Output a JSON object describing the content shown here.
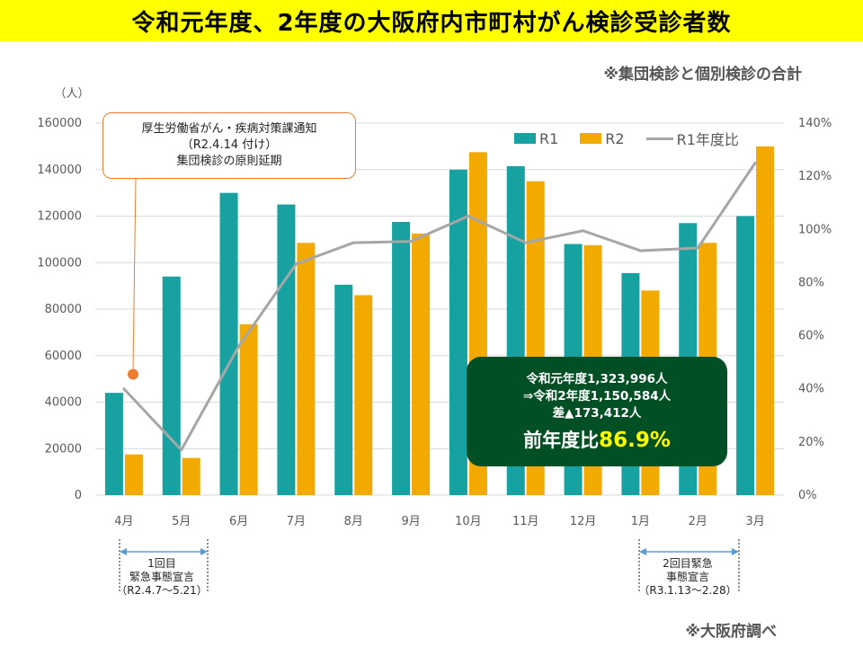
{
  "title": "令和元年度、2年度の大阪府内市町村がん検診受診者数",
  "subtitle": "※集団検診と個別検診の合計",
  "source": "※大阪府調べ",
  "colors": {
    "r1": "#17a2a1",
    "r2": "#f2a900",
    "ratio": "#a6a6a6",
    "accent": "#ed7d31",
    "summary_bg": "#004f25",
    "highlight": "#ffff00"
  },
  "chart_data": {
    "type": "bar",
    "categories": [
      "4月",
      "5月",
      "6月",
      "7月",
      "8月",
      "9月",
      "10月",
      "11月",
      "12月",
      "1月",
      "2月",
      "3月"
    ],
    "series": [
      {
        "name": "R1",
        "type": "bar",
        "axis": "left",
        "values": [
          44000,
          94000,
          130000,
          125000,
          90500,
          117500,
          140000,
          141500,
          108000,
          95500,
          117000,
          120000
        ]
      },
      {
        "name": "R2",
        "type": "bar",
        "axis": "left",
        "values": [
          17500,
          16000,
          73500,
          108500,
          86000,
          112500,
          147500,
          135000,
          107500,
          88000,
          108500,
          150000
        ]
      },
      {
        "name": "R1年度比",
        "type": "line",
        "axis": "right",
        "values": [
          40,
          17,
          56,
          87,
          95,
          95.5,
          105,
          95,
          99.5,
          92,
          93,
          125
        ]
      }
    ],
    "ylabel": "（人）",
    "ylim": [
      0,
      160000
    ],
    "yticks": [
      "0",
      "20000",
      "40000",
      "60000",
      "80000",
      "100000",
      "120000",
      "140000",
      "160000"
    ],
    "y2lim": [
      0,
      140
    ],
    "y2ticks": [
      "0%",
      "20%",
      "40%",
      "60%",
      "80%",
      "100%",
      "120%",
      "140%"
    ],
    "legend": [
      "R1",
      "R2",
      "R1年度比"
    ],
    "legend_position": "top-right"
  },
  "callout": {
    "line1": "厚生労働省がん・疾病対策課通知",
    "line2": "（R2.4.14 付け）",
    "line3": "集団検診の原則延期",
    "marker_value": 52000
  },
  "summary": {
    "line1": "令和元年度1,323,996人",
    "line2": "⇒令和2年度1,150,584人",
    "line3": "差▲173,412人",
    "label": "前年度比",
    "percent": "86.9%"
  },
  "periods": [
    {
      "line1": "1回目",
      "line2": "緊急事態宣言",
      "line3": "（R2.4.7～5.21）"
    },
    {
      "line1": "2回目緊急",
      "line2": "事態宣言",
      "line3": "（R3.1.13～2.28）"
    }
  ]
}
